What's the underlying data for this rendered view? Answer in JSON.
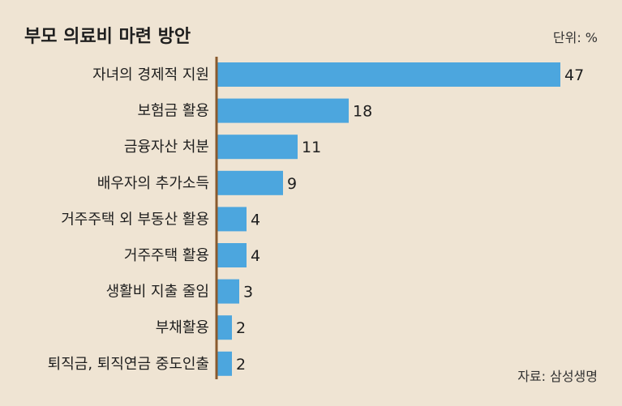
{
  "chart_data": {
    "type": "bar",
    "orientation": "horizontal",
    "title": "부모 의료비 마련 방안",
    "unit_label": "단위: %",
    "source": "자료: 삼성생명",
    "categories": [
      "자녀의 경제적 지원",
      "보험금 활용",
      "금융자산 처분",
      "배우자의 추가소득",
      "거주주택 외 부동산 활용",
      "거주주택 활용",
      "생활비 지출 줄임",
      "부채활용",
      "퇴직금, 퇴직연금 중도인출"
    ],
    "values": [
      47,
      18,
      11,
      9,
      4,
      4,
      3,
      2,
      2
    ],
    "xlim": [
      0,
      47
    ],
    "bar_color": "#4ca6de",
    "axis_color": "#8a5a2e",
    "grid": false,
    "legend": "none"
  }
}
